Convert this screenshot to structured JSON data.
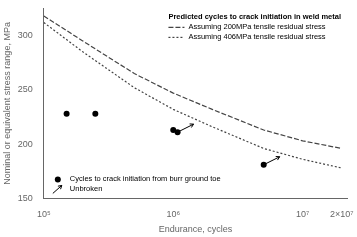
{
  "chart_data": {
    "type": "line",
    "xlabel": "Endurance, cycles",
    "ylabel": "Nominal or equivalent stress range, MPa",
    "log": "x",
    "xlim": [
      100000,
      22000000
    ],
    "xticks": [
      {
        "value": 100000,
        "label": "10⁵"
      },
      {
        "value": 1000000,
        "label": "10⁶"
      },
      {
        "value": 10000000,
        "label": "10⁷"
      },
      {
        "value": 20000000,
        "label": "2×10⁷"
      }
    ],
    "ylim": [
      150,
      325
    ],
    "yticks": [
      150,
      200,
      250,
      300
    ],
    "grid": false,
    "legend": "upper right",
    "legend_title": "Predicted cycles to crack initiation in weld metal",
    "series": [
      {
        "name": "Assuming 200MPa tensile residual stress",
        "type": "line",
        "line_style": "dashed",
        "color": "#444444",
        "x": [
          100000,
          200000,
          500000,
          1000000,
          2000000,
          5000000,
          10000000,
          20000000
        ],
        "values": [
          318,
          295,
          265,
          247,
          232,
          213,
          203,
          196
        ]
      },
      {
        "name": "Assuming 406MPa tensile residual stress",
        "type": "line",
        "line_style": "dotted",
        "color": "#444444",
        "x": [
          100000,
          200000,
          500000,
          1000000,
          2000000,
          5000000,
          10000000,
          20000000
        ],
        "values": [
          312,
          285,
          252,
          232,
          216,
          196,
          186,
          178
        ]
      },
      {
        "name": "Cycles to crack initiation from burr ground toe",
        "type": "scatter",
        "marker": "circle",
        "color": "#000000",
        "x": [
          150000,
          250000,
          1000000,
          1080000,
          5000000
        ],
        "values": [
          228,
          228,
          213,
          211,
          181
        ]
      },
      {
        "name": "Unbroken",
        "type": "scatter",
        "marker": "arrow",
        "color": "#000000",
        "x": [
          1080000,
          5000000
        ],
        "values": [
          211,
          181
        ]
      }
    ]
  }
}
